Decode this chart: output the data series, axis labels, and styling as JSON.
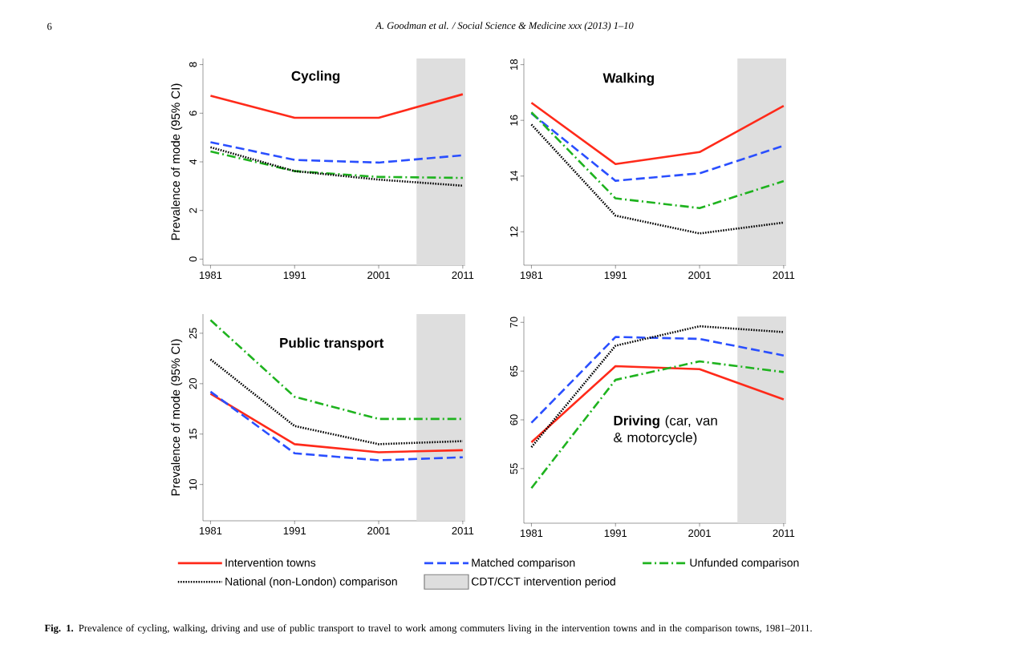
{
  "chart_data": [
    {
      "type": "line",
      "title": "Cycling",
      "ylabel": "Prevalence of mode (95% CI)",
      "x": [
        1981,
        1991,
        2001,
        2011
      ],
      "xlim": [
        1980.1,
        2011.3
      ],
      "xticks": [
        1981,
        1991,
        2001,
        2011
      ],
      "ylim": [
        -0.25,
        8.25
      ],
      "yticks": [
        0,
        2,
        4,
        6,
        8
      ],
      "legend": "bottom",
      "series": [
        {
          "name": "Intervention towns",
          "color": "#ff2a1a",
          "line_style": "solid",
          "values": [
            6.72,
            5.81,
            5.81,
            6.78
          ]
        },
        {
          "name": "Matched comparison",
          "color": "#2a4fff",
          "line_style": "dashed",
          "values": [
            4.81,
            4.08,
            3.97,
            4.27
          ]
        },
        {
          "name": "Unfunded comparison",
          "color": "#1fb31f",
          "line_style": "dashdot",
          "values": [
            4.43,
            3.62,
            3.38,
            3.34
          ]
        },
        {
          "name": "National  (non-London) comparison",
          "color": "#000000",
          "line_style": "dotted",
          "values": [
            4.6,
            3.62,
            3.27,
            3.02
          ]
        }
      ],
      "bands": [
        {
          "axis": "x",
          "from": 2005.5,
          "to": 2011.3,
          "label": "CDT/CCT intervention period",
          "color": "#dedede"
        }
      ],
      "annotations": [
        "6",
        "A. Goodman et al. / Social Science & Medicine xxx (2013) 1–10",
        "**Fig. 1.** Prevalence of cycling, walking, driving and use of public transport to travel to work among commuters living in the intervention towns and in the comparison towns, 1981–2011."
      ]
    },
    {
      "type": "line",
      "title": "Walking",
      "x": [
        1981,
        1991,
        2001,
        2011
      ],
      "xlim": [
        1980.1,
        2011.3
      ],
      "xticks": [
        1981,
        1991,
        2001,
        2011
      ],
      "ylim": [
        10.8,
        18.22
      ],
      "yticks": [
        12,
        14,
        16,
        18
      ],
      "series": [
        {
          "color": "#ff2a1a",
          "line_style": "solid",
          "values": [
            16.63,
            14.43,
            14.86,
            16.52
          ]
        },
        {
          "color": "#2a4fff",
          "line_style": "dashed",
          "values": [
            16.25,
            13.83,
            14.1,
            15.09
          ]
        },
        {
          "color": "#1fb31f",
          "line_style": "dashdot",
          "values": [
            16.29,
            13.2,
            12.85,
            13.82
          ]
        },
        {
          "color": "#000000",
          "line_style": "dotted",
          "values": [
            15.85,
            12.58,
            11.94,
            12.33
          ]
        }
      ],
      "bands": [
        {
          "axis": "x",
          "from": 2005.5,
          "to": 2011.3,
          "color": "#dedede"
        }
      ]
    },
    {
      "type": "line",
      "title": "Public transport",
      "ylabel": "Prevalence of mode (95% CI)",
      "x": [
        1981,
        1991,
        2001,
        2011
      ],
      "xlim": [
        1980.1,
        2011.3
      ],
      "xticks": [
        1981,
        1991,
        2001,
        2011
      ],
      "ylim": [
        6.4,
        26.9
      ],
      "yticks": [
        10,
        15,
        20,
        25
      ],
      "series": [
        {
          "color": "#ff2a1a",
          "line_style": "solid",
          "values": [
            19.0,
            14.0,
            13.2,
            13.4
          ]
        },
        {
          "color": "#2a4fff",
          "line_style": "dashed",
          "values": [
            19.2,
            13.1,
            12.4,
            12.7
          ]
        },
        {
          "color": "#1fb31f",
          "line_style": "dashdot",
          "values": [
            26.3,
            18.7,
            16.5,
            16.5
          ]
        },
        {
          "color": "#000000",
          "line_style": "dotted",
          "values": [
            22.4,
            15.8,
            14.0,
            14.3
          ]
        }
      ],
      "bands": [
        {
          "axis": "x",
          "from": 2005.5,
          "to": 2011.3,
          "color": "#dedede"
        }
      ]
    },
    {
      "type": "line",
      "title": "**Driving** (car, van & motorcycle)",
      "x": [
        1981,
        1991,
        2001,
        2011
      ],
      "xlim": [
        1980.1,
        2011.3
      ],
      "xticks": [
        1981,
        1991,
        2001,
        2011
      ],
      "ylim": [
        49.4,
        70.6
      ],
      "yticks": [
        55,
        60,
        65,
        70
      ],
      "series": [
        {
          "color": "#ff2a1a",
          "line_style": "solid",
          "values": [
            57.7,
            65.5,
            65.2,
            62.1
          ]
        },
        {
          "color": "#2a4fff",
          "line_style": "dashed",
          "values": [
            59.7,
            68.5,
            68.3,
            66.6
          ]
        },
        {
          "color": "#1fb31f",
          "line_style": "dashdot",
          "values": [
            53.0,
            64.1,
            66.0,
            64.9
          ]
        },
        {
          "color": "#000000",
          "line_style": "dotted",
          "values": [
            57.2,
            67.6,
            69.6,
            69.0
          ]
        }
      ],
      "bands": [
        {
          "axis": "x",
          "from": 2005.5,
          "to": 2011.3,
          "color": "#dedede"
        }
      ]
    }
  ]
}
